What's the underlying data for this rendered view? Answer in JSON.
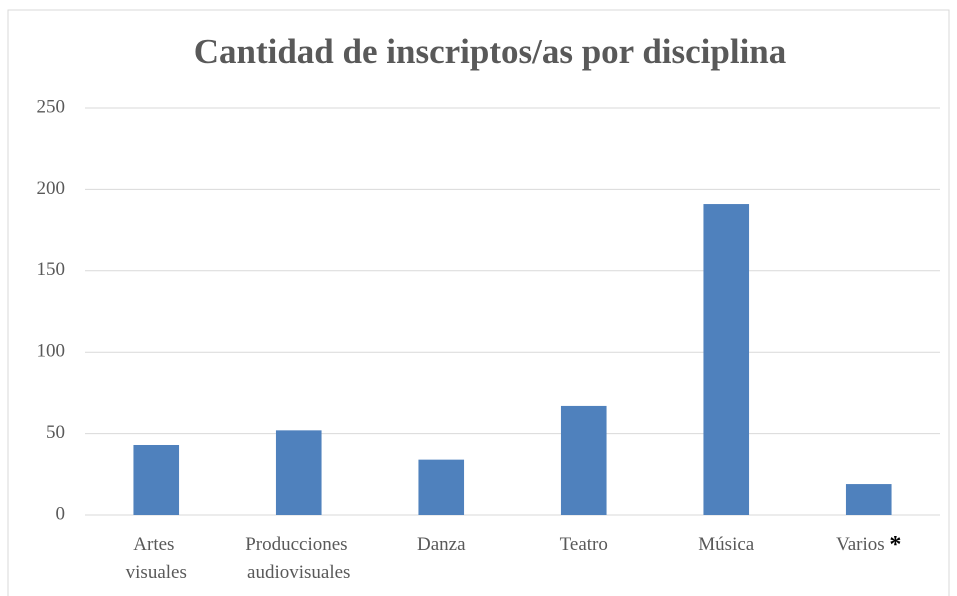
{
  "chart_data": {
    "type": "bar",
    "title": "Cantidad de inscriptos/as por disciplina",
    "categories": [
      "Artes visuales",
      "Producciones audiovisuales",
      "Danza",
      "Teatro",
      "Música",
      "Varios *"
    ],
    "values": [
      43,
      52,
      34,
      67,
      191,
      19
    ],
    "color": "#4f81bd",
    "ylim": [
      0,
      250
    ],
    "yticks": [
      0,
      50,
      100,
      150,
      200,
      250
    ],
    "grid": true
  }
}
